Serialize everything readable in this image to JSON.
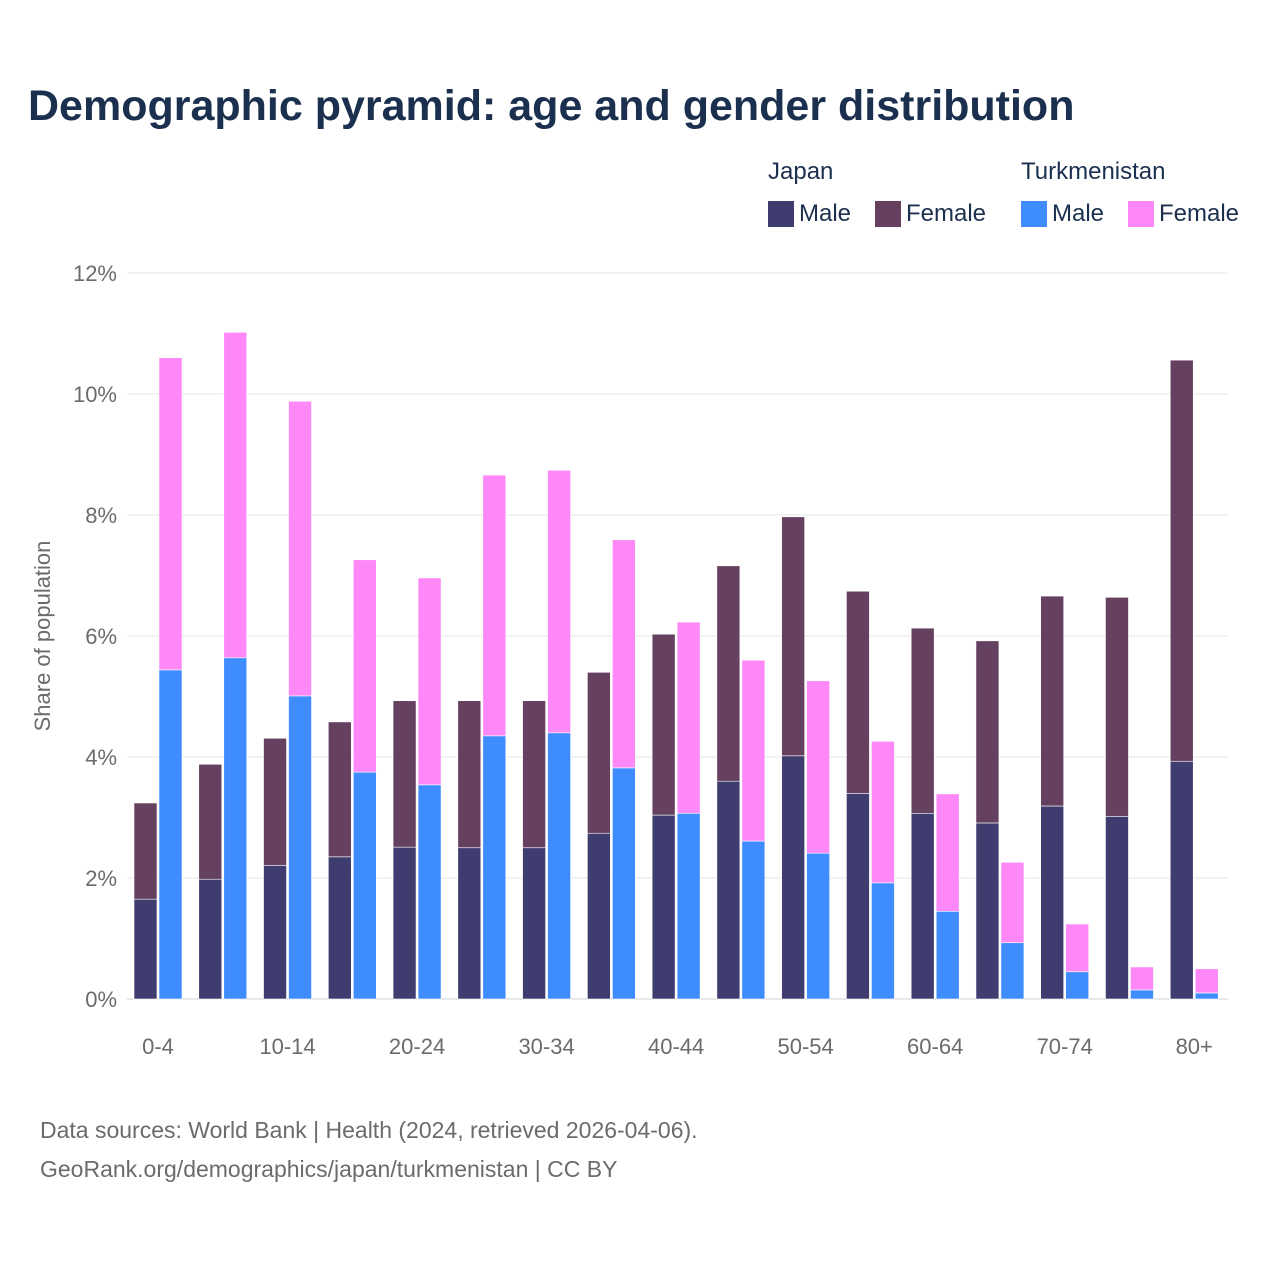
{
  "chart_data": {
    "type": "bar",
    "stacked": true,
    "title": "Demographic pyramid: age and gender distribution",
    "ylabel": "Share of population",
    "xlabel": "",
    "ylim": [
      0,
      12
    ],
    "yticks": [
      "0%",
      "2%",
      "4%",
      "6%",
      "8%",
      "10%",
      "12%"
    ],
    "ytick_values": [
      0,
      2,
      4,
      6,
      8,
      10,
      12
    ],
    "grid": true,
    "legend_position": "top-right",
    "categories": [
      "0-4",
      "5-9",
      "10-14",
      "15-19",
      "20-24",
      "25-29",
      "30-34",
      "35-39",
      "40-44",
      "45-49",
      "50-54",
      "55-59",
      "60-64",
      "65-69",
      "70-74",
      "75-79",
      "80+"
    ],
    "xtick_labels": [
      "0-4",
      "",
      "10-14",
      "",
      "20-24",
      "",
      "30-34",
      "",
      "40-44",
      "",
      "50-54",
      "",
      "60-64",
      "",
      "70-74",
      "",
      "80+"
    ],
    "groups": [
      {
        "name": "Japan",
        "series": [
          {
            "name": "Male",
            "color": "#3f3d6f",
            "values": [
              1.65,
              1.98,
              2.21,
              2.35,
              2.51,
              2.5,
              2.5,
              2.74,
              3.04,
              3.6,
              4.02,
              3.4,
              3.07,
              2.91,
              3.19,
              3.02,
              3.93
            ]
          },
          {
            "name": "Female",
            "color": "#66405f",
            "values": [
              1.59,
              1.9,
              2.1,
              2.23,
              2.42,
              2.43,
              2.43,
              2.66,
              2.99,
              3.56,
              3.95,
              3.34,
              3.06,
              3.01,
              3.47,
              3.62,
              6.63
            ]
          }
        ]
      },
      {
        "name": "Turkmenistan",
        "series": [
          {
            "name": "Male",
            "color": "#3f8cff",
            "values": [
              5.44,
              5.64,
              5.01,
              3.75,
              3.54,
              4.35,
              4.4,
              3.82,
              3.07,
              2.61,
              2.41,
              1.92,
              1.45,
              0.93,
              0.45,
              0.15,
              0.1
            ]
          },
          {
            "name": "Female",
            "color": "#ff88f8",
            "values": [
              5.16,
              5.38,
              4.87,
              3.51,
              3.42,
              4.31,
              4.34,
              3.77,
              3.16,
              2.99,
              2.85,
              2.34,
              1.94,
              1.33,
              0.79,
              0.38,
              0.4
            ]
          }
        ]
      }
    ]
  },
  "footer": {
    "line1": "Data sources: World Bank | Health (2024, retrieved 2026-04-06).",
    "line2": "GeoRank.org/demographics/japan/turkmenistan | CC BY"
  }
}
